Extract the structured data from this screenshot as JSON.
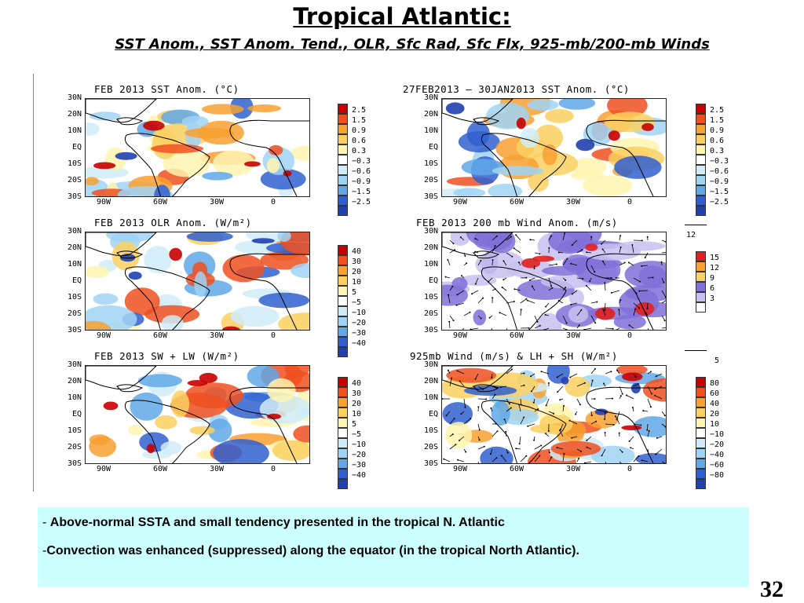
{
  "header": {
    "title": "Tropical Atlantic:",
    "subtitle": "SST Anom., SST Anom. Tend., OLR, Sfc Rad, Sfc Flx, 925-mb/200-mb Winds"
  },
  "axes": {
    "lat_labels": [
      "30N",
      "20N",
      "10N",
      "EQ",
      "10S",
      "20S",
      "30S"
    ],
    "lon_labels": [
      "90W",
      "60W",
      "30W",
      "0"
    ]
  },
  "panels": [
    {
      "title": "FEB 2013 SST Anom. (°C)",
      "levels": [
        "2.5",
        "1.5",
        "0.9",
        "0.6",
        "0.3",
        "−0.3",
        "−0.6",
        "−0.9",
        "−1.5",
        "−2.5"
      ]
    },
    {
      "title": "27FEB2013 – 30JAN2013 SST Anom. (°C)",
      "levels": [
        "2.5",
        "1.5",
        "0.9",
        "0.6",
        "0.3",
        "−0.3",
        "−0.6",
        "−0.9",
        "−1.5",
        "−2.5"
      ]
    },
    {
      "title": "FEB 2013 OLR Anom. (W/m²)",
      "levels": [
        "40",
        "30",
        "20",
        "10",
        "5",
        "−5",
        "−10",
        "−20",
        "−30",
        "−40"
      ]
    },
    {
      "title": "FEB 2013 200 mb Wind Anom. (m/s)",
      "levels": [
        "15",
        "12",
        "9",
        "6",
        "3"
      ],
      "ref_vector": "12"
    },
    {
      "title": "FEB 2013 SW + LW (W/m²)",
      "levels": [
        "40",
        "30",
        "20",
        "10",
        "5",
        "−5",
        "−10",
        "−20",
        "−30",
        "−40"
      ]
    },
    {
      "title": "925mb Wind (m/s) & LH + SH (W/m²)",
      "levels": [
        "80",
        "60",
        "40",
        "20",
        "10",
        "−10",
        "−20",
        "−40",
        "−60",
        "−80"
      ],
      "ref_vector": "5"
    }
  ],
  "colors": {
    "diverging": [
      "#c80000",
      "#f05020",
      "#f8a030",
      "#fcd060",
      "#fff4b0",
      "#ffffff",
      "#d0ecf8",
      "#a0d4f4",
      "#60a8e8",
      "#3060d0",
      "#2040b0"
    ],
    "wind": [
      "#e02020",
      "#f8a030",
      "#fcd060",
      "#8070d8",
      "#c8c0f0",
      "#ffffff"
    ],
    "land_outline": "#000000",
    "note_bg": "#ccffff"
  },
  "notes": [
    {
      "dash": "- ",
      "text": "Above-normal SSTA and small tendency presented in the tropical N. Atlantic"
    },
    {
      "dash": "-",
      "text": "Convection was enhanced (suppressed) along the equator (in the tropical North Atlantic)."
    }
  ],
  "page_number": "32"
}
